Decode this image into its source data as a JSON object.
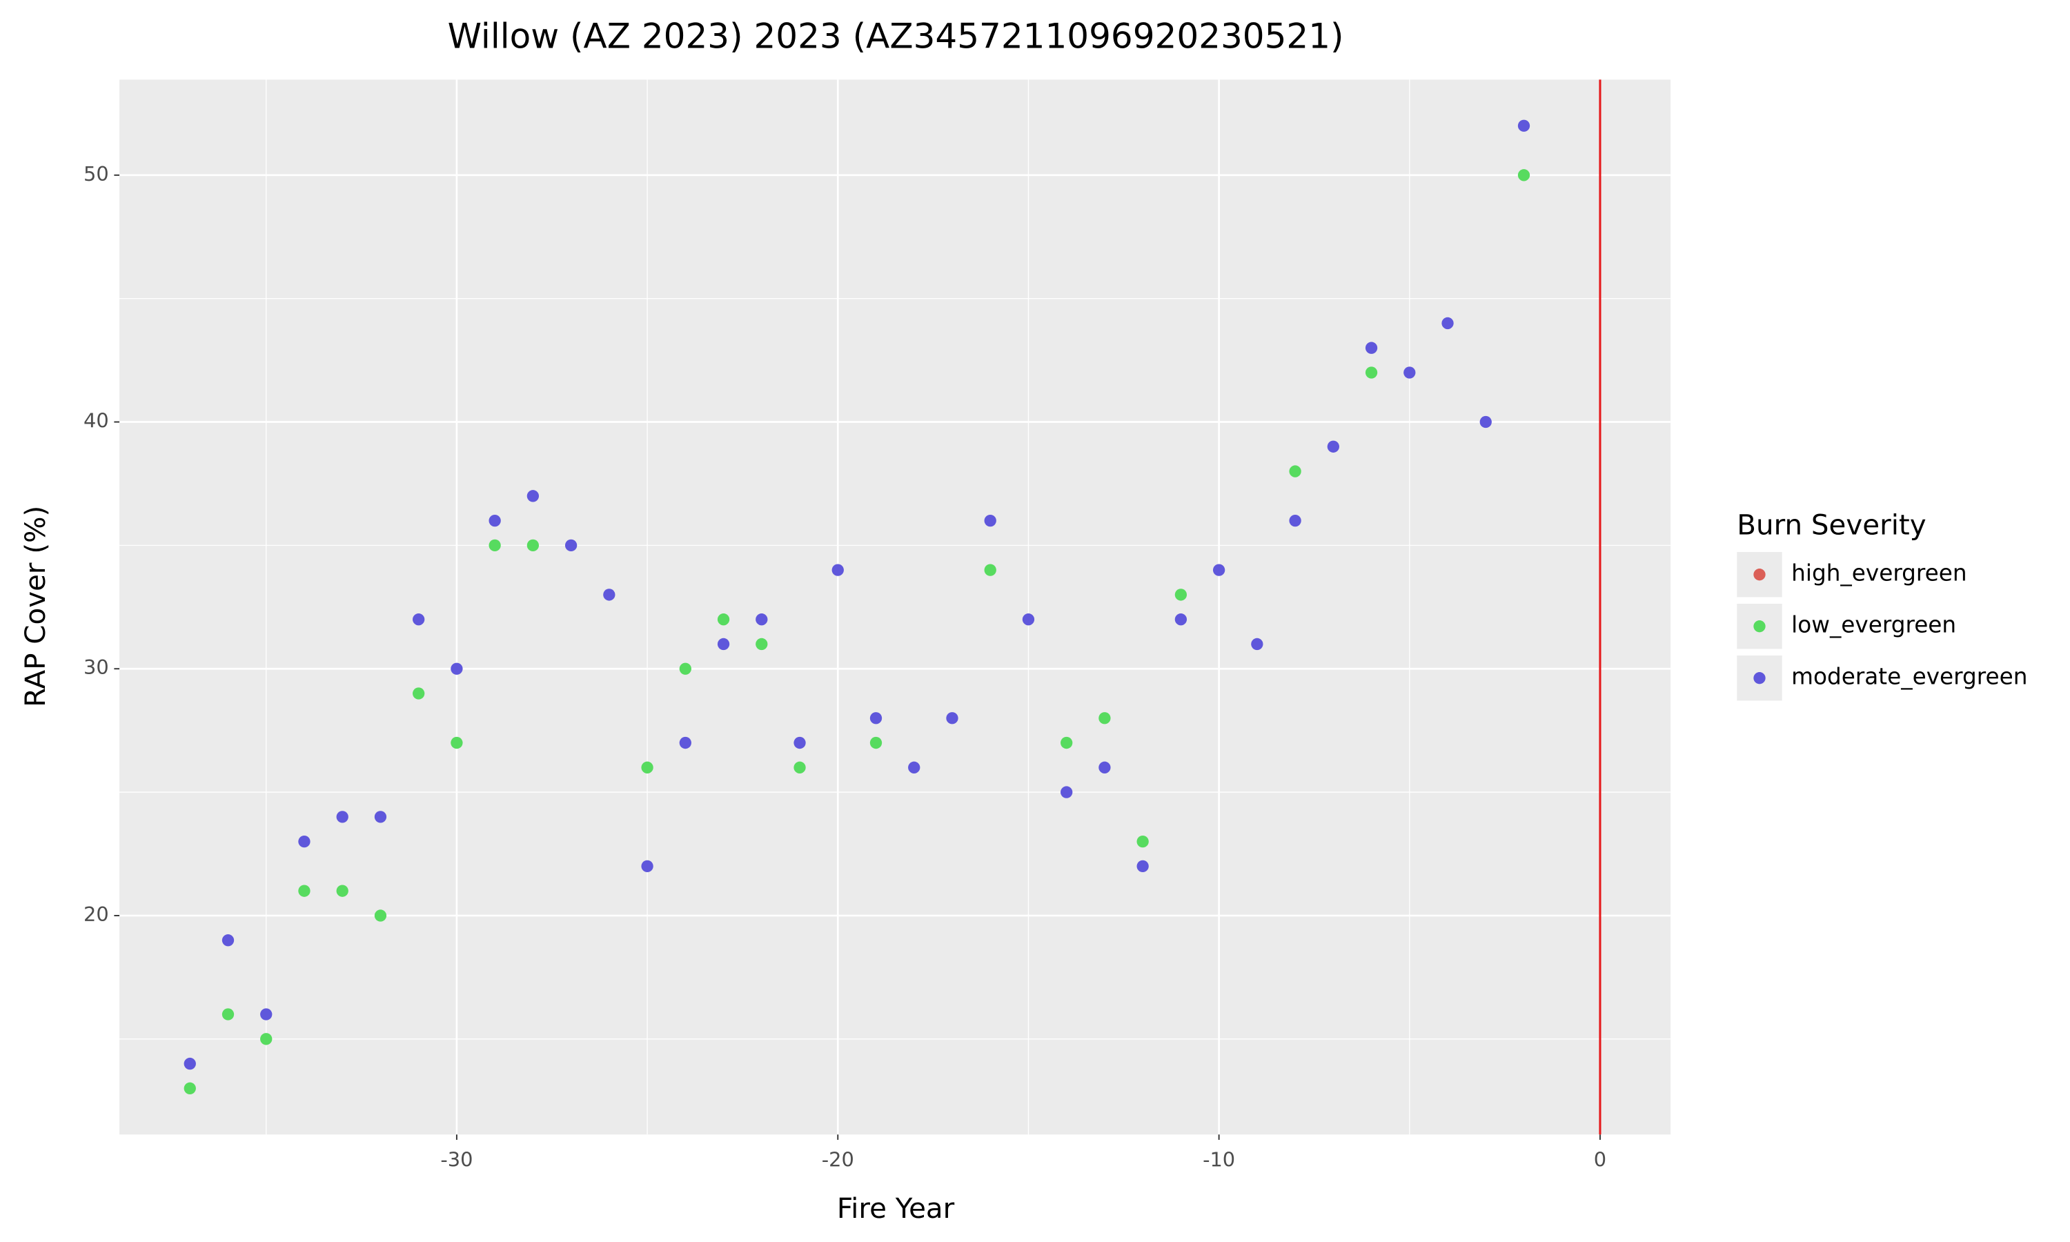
{
  "chart_data": {
    "type": "scatter",
    "title": "Willow (AZ 2023) 2023 (AZ3457211096920230521)",
    "x_label": "Fire Year",
    "y_label": "RAP Cover (%)",
    "legend_title": "Burn Severity",
    "xlim": [
      -38.85,
      1.85
    ],
    "ylim": [
      11.13,
      53.87
    ],
    "xticks": [
      -30,
      -20,
      -10,
      0
    ],
    "yticks": [
      20,
      30,
      40,
      50
    ],
    "xminor": [
      -35,
      -25,
      -15,
      -5
    ],
    "yminor": [
      15,
      25,
      35,
      45
    ],
    "grid": true,
    "vline": {
      "x": 0,
      "color": "#e41a1c"
    },
    "series": [
      {
        "name": "high_evergreen",
        "color": "#db5f57",
        "x": [],
        "values": []
      },
      {
        "name": "low_evergreen",
        "color": "#57db5f",
        "x": [
          -37,
          -36,
          -35,
          -34,
          -33,
          -32,
          -31,
          -30,
          -29,
          -28,
          -25,
          -24,
          -23,
          -22,
          -21,
          -19,
          -16,
          -14,
          -13,
          -12,
          -11,
          -8,
          -6,
          -2
        ],
        "values": [
          13,
          16,
          15,
          21,
          21,
          20,
          29,
          27,
          35,
          35,
          26,
          30,
          32,
          31,
          26,
          27,
          34,
          27,
          28,
          23,
          33,
          38,
          42,
          50
        ]
      },
      {
        "name": "moderate_evergreen",
        "color": "#5f57db",
        "x": [
          -37,
          -36,
          -35,
          -34,
          -33,
          -32,
          -31,
          -30,
          -29,
          -28,
          -27,
          -26,
          -25,
          -24,
          -23,
          -22,
          -21,
          -20,
          -19,
          -18,
          -17,
          -16,
          -15,
          -14,
          -13,
          -12,
          -11,
          -10,
          -9,
          -8,
          -7,
          -6,
          -5,
          -4,
          -3,
          -2
        ],
        "values": [
          14,
          19,
          16,
          23,
          24,
          24,
          32,
          30,
          36,
          37,
          35,
          33,
          22,
          27,
          31,
          32,
          27,
          34,
          28,
          26,
          28,
          36,
          32,
          25,
          26,
          22,
          32,
          34,
          31,
          36,
          39,
          43,
          42,
          44,
          40,
          52
        ]
      }
    ]
  }
}
